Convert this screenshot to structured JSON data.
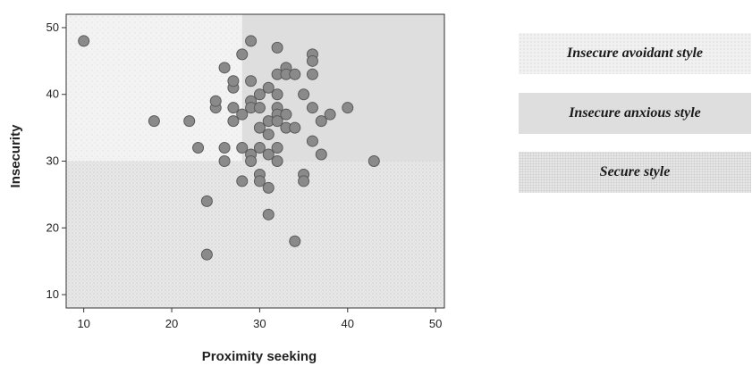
{
  "chart_data": {
    "type": "scatter",
    "xlabel": "Proximity seeking",
    "ylabel": "Insecurity",
    "xlim": [
      8,
      51
    ],
    "ylim": [
      8,
      52
    ],
    "xticks": [
      10,
      20,
      30,
      40,
      50
    ],
    "yticks": [
      10,
      20,
      30,
      40,
      50
    ],
    "grid": false,
    "regions": [
      {
        "label": "Insecure avoidant style",
        "x": [
          8,
          28
        ],
        "y": [
          30,
          52
        ],
        "color": "#f1f1f1"
      },
      {
        "label": "Insecure anxious style",
        "x": [
          28,
          51
        ],
        "y": [
          30,
          52
        ],
        "color": "#dedede"
      },
      {
        "label": "Secure style",
        "x": [
          8,
          51
        ],
        "y": [
          8,
          30
        ],
        "color": "#e6e6e6"
      }
    ],
    "points": [
      [
        10,
        48
      ],
      [
        18,
        36
      ],
      [
        22,
        36
      ],
      [
        23,
        32
      ],
      [
        24,
        24
      ],
      [
        24,
        16
      ],
      [
        25,
        38
      ],
      [
        25,
        39
      ],
      [
        26,
        44
      ],
      [
        26,
        32
      ],
      [
        26,
        30
      ],
      [
        27,
        41
      ],
      [
        27,
        42
      ],
      [
        27,
        38
      ],
      [
        27,
        36
      ],
      [
        28,
        46
      ],
      [
        28,
        37
      ],
      [
        28,
        32
      ],
      [
        28,
        27
      ],
      [
        29,
        48
      ],
      [
        29,
        42
      ],
      [
        29,
        39
      ],
      [
        29,
        38
      ],
      [
        29,
        31
      ],
      [
        29,
        30
      ],
      [
        30,
        40
      ],
      [
        30,
        38
      ],
      [
        30,
        35
      ],
      [
        30,
        32
      ],
      [
        30,
        28
      ],
      [
        30,
        27
      ],
      [
        31,
        41
      ],
      [
        31,
        36
      ],
      [
        31,
        34
      ],
      [
        31,
        31
      ],
      [
        31,
        26
      ],
      [
        31,
        22
      ],
      [
        32,
        47
      ],
      [
        32,
        43
      ],
      [
        32,
        40
      ],
      [
        32,
        38
      ],
      [
        32,
        37
      ],
      [
        32,
        36
      ],
      [
        32,
        32
      ],
      [
        32,
        30
      ],
      [
        33,
        44
      ],
      [
        33,
        43
      ],
      [
        33,
        37
      ],
      [
        33,
        35
      ],
      [
        34,
        43
      ],
      [
        34,
        35
      ],
      [
        34,
        18
      ],
      [
        35,
        40
      ],
      [
        35,
        28
      ],
      [
        35,
        27
      ],
      [
        36,
        46
      ],
      [
        36,
        45
      ],
      [
        36,
        43
      ],
      [
        36,
        38
      ],
      [
        36,
        33
      ],
      [
        37,
        36
      ],
      [
        37,
        31
      ],
      [
        38,
        37
      ],
      [
        40,
        38
      ],
      [
        43,
        30
      ]
    ]
  },
  "legend": {
    "avoidant": "Insecure avoidant style",
    "anxious": "Insecure anxious style",
    "secure": "Secure style"
  },
  "colors": {
    "point_fill": "#8a8a8a",
    "point_stroke": "#5a5a5a",
    "axis": "#333333"
  }
}
